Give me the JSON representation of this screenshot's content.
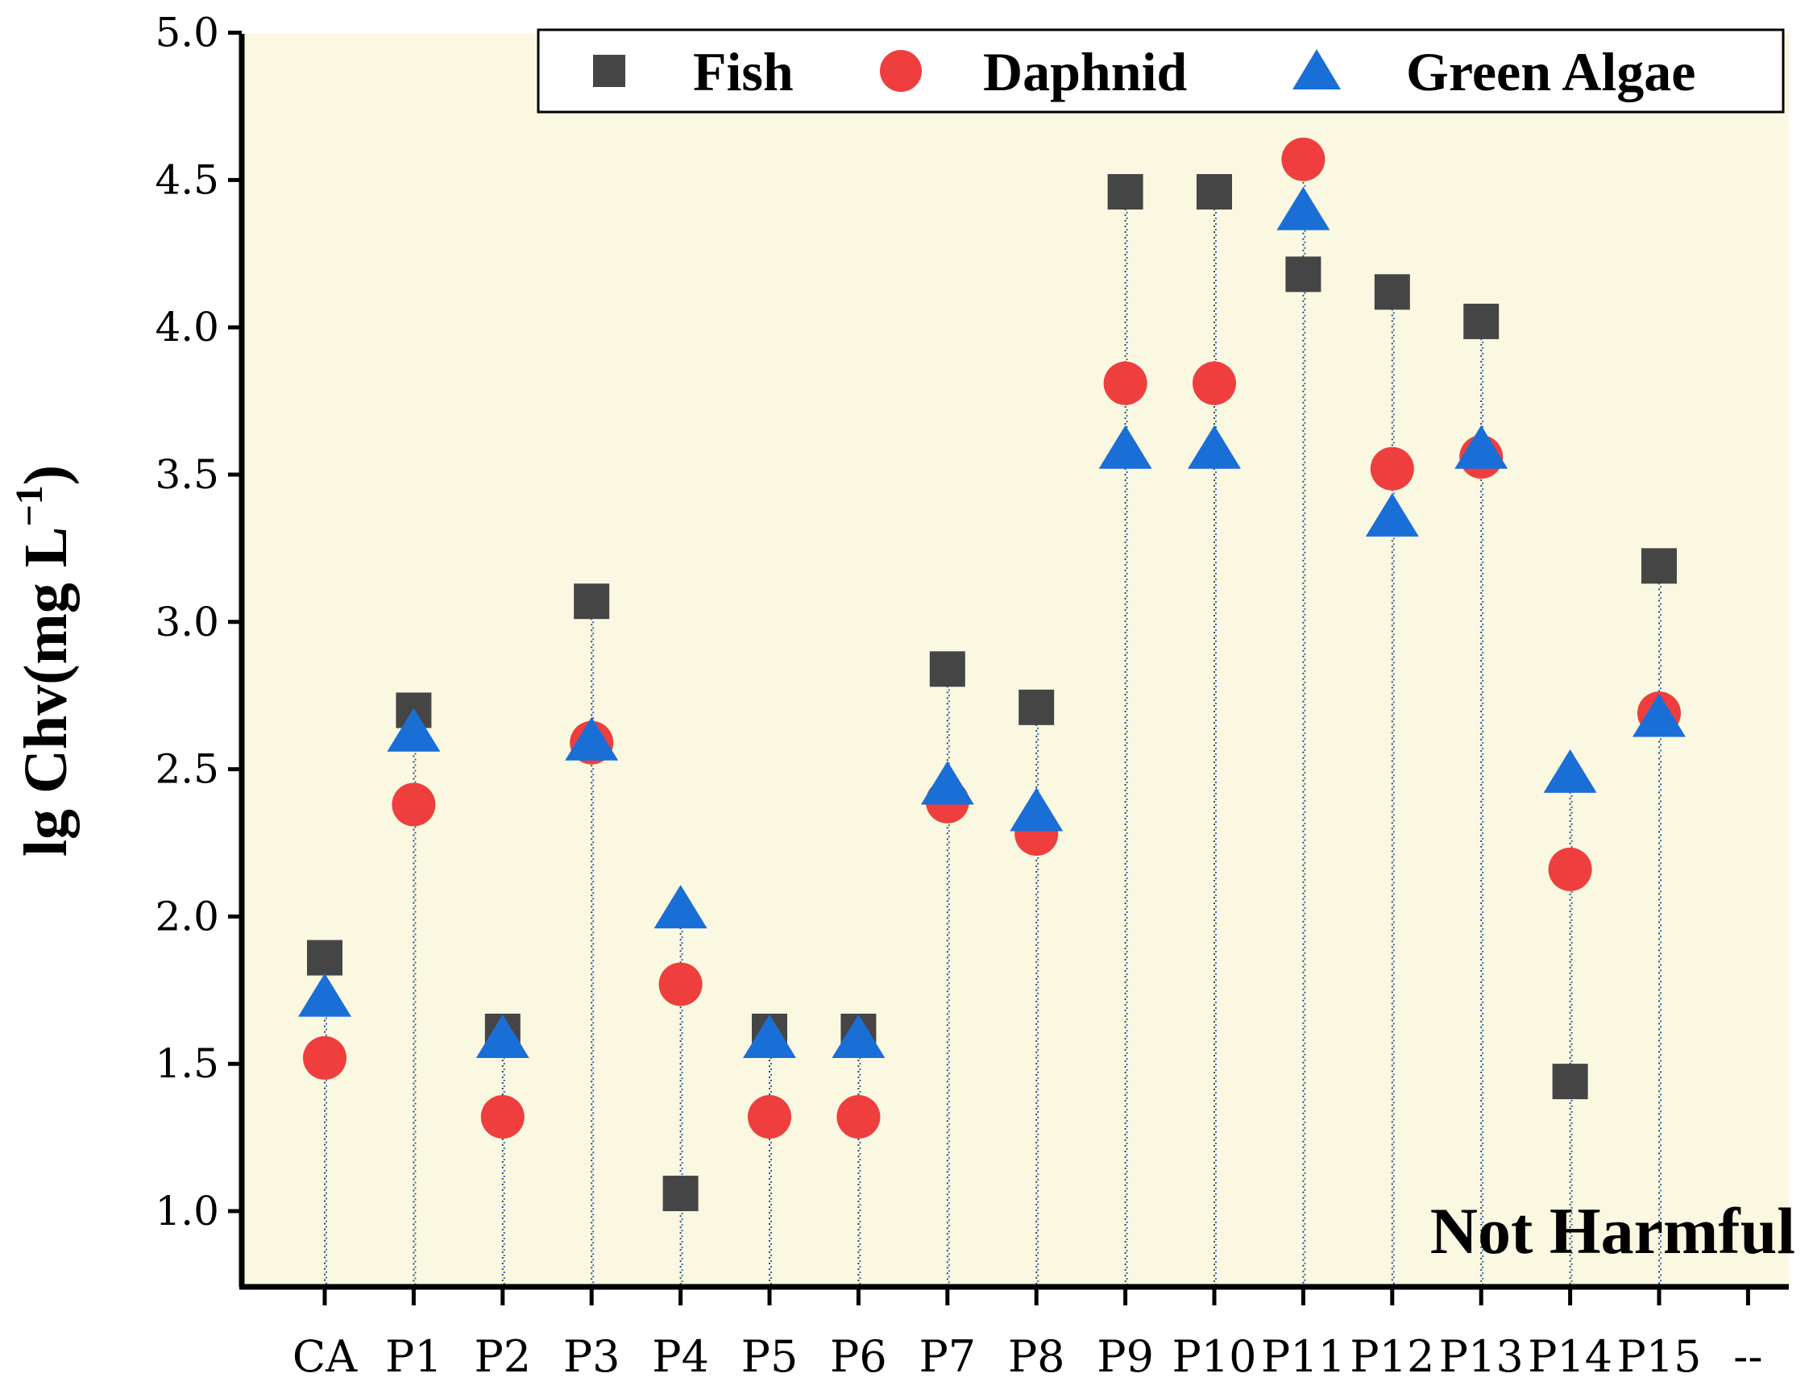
{
  "chart_data": {
    "type": "scatter",
    "title": "",
    "xlabel": "",
    "ylabel": "lg Chv(mg L",
    "ylabel_unit_superscript": "−1",
    "ylabel_close": ")",
    "ylim": [
      0.75,
      5.0
    ],
    "yticks": [
      "1.0",
      "1.5",
      "2.0",
      "2.5",
      "3.0",
      "3.5",
      "4.0",
      "4.5",
      "5.0"
    ],
    "ytick_values": [
      1.0,
      1.5,
      2.0,
      2.5,
      3.0,
      3.5,
      4.0,
      4.5,
      5.0
    ],
    "categories": [
      "CA",
      "P1",
      "P2",
      "P3",
      "P4",
      "P5",
      "P6",
      "P7",
      "P8",
      "P9",
      "P10",
      "P11",
      "P12",
      "P13",
      "P14",
      "P15",
      "--"
    ],
    "series": [
      {
        "name": "Fish",
        "marker": "square",
        "color": "#454545",
        "values": [
          1.86,
          2.7,
          1.61,
          3.07,
          1.06,
          1.61,
          1.61,
          2.84,
          2.71,
          4.46,
          4.46,
          4.18,
          4.12,
          4.02,
          1.44,
          3.19,
          null
        ]
      },
      {
        "name": "Daphnid",
        "marker": "circle",
        "color": "#ee3e3e",
        "values": [
          1.52,
          2.38,
          1.32,
          2.59,
          1.77,
          1.32,
          1.32,
          2.39,
          2.28,
          3.81,
          3.81,
          4.57,
          3.52,
          3.56,
          2.16,
          2.69,
          null
        ]
      },
      {
        "name": "Green Algae",
        "marker": "triangle",
        "color": "#1a6fd6",
        "values": [
          1.72,
          2.62,
          1.58,
          2.59,
          2.02,
          1.58,
          1.58,
          2.44,
          2.35,
          3.58,
          3.58,
          4.39,
          3.35,
          3.58,
          2.48,
          2.67,
          null
        ]
      }
    ],
    "legend_position": "top-right",
    "region_label": "Not Harmful",
    "region_color": "#fbf8e1",
    "grid": false
  }
}
